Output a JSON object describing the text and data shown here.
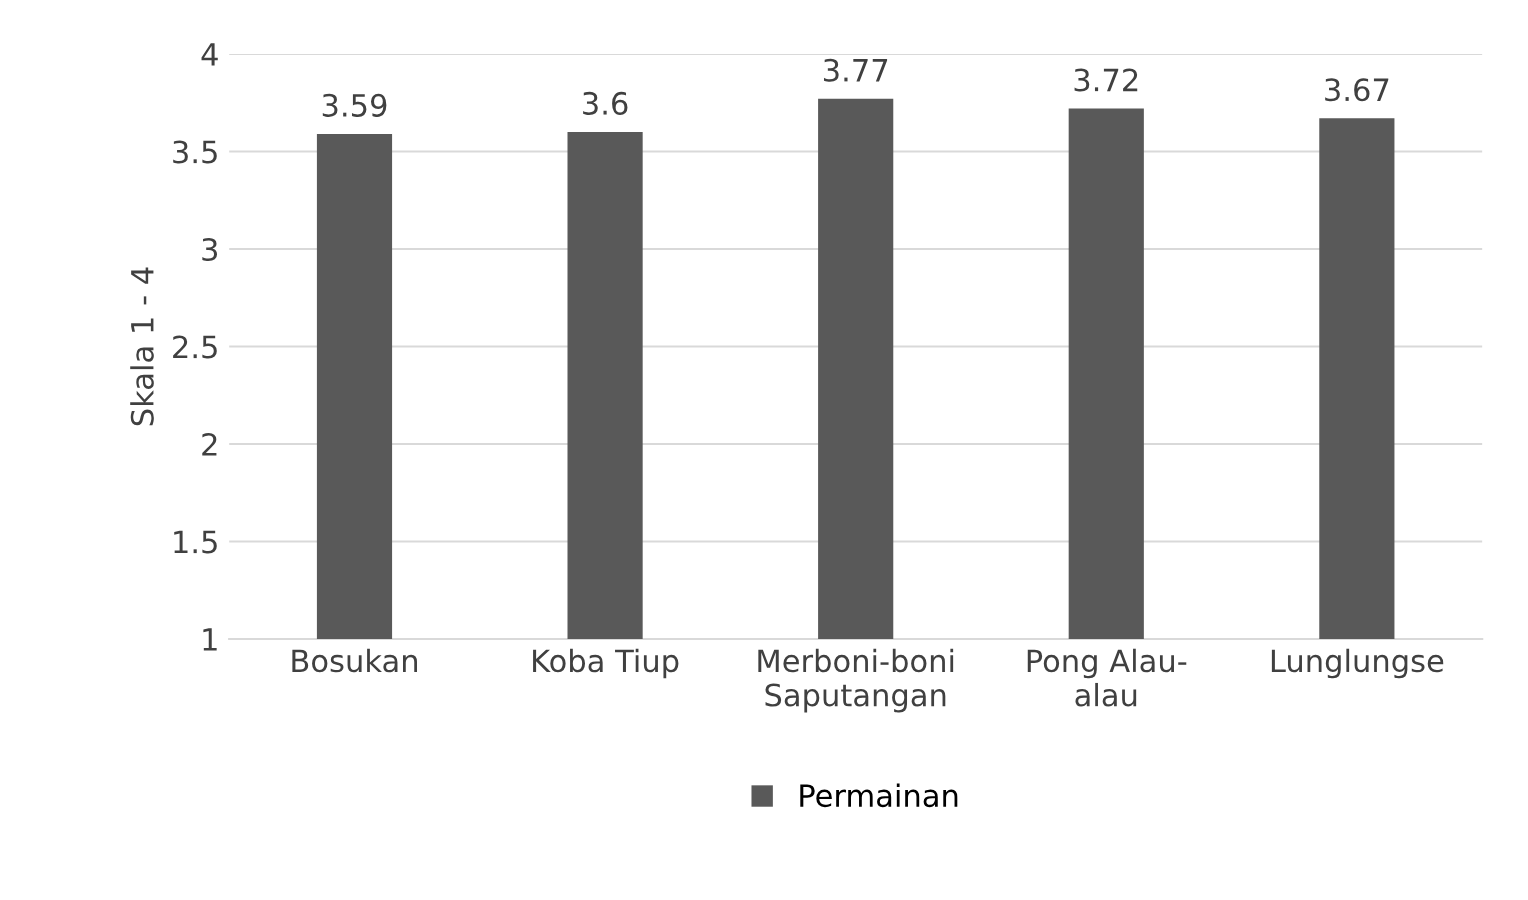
{
  "chart_data": {
    "type": "bar",
    "ylabel": "Skala 1 - 4",
    "categories": [
      "Bosukan",
      "Koba Tiup",
      "Merboni-boni\nSaputangan",
      "Pong Alau-\nalau",
      "Lunglungse"
    ],
    "series": [
      {
        "name": "Permainan",
        "color": "#595959",
        "values": [
          3.59,
          3.6,
          3.77,
          3.72,
          3.67
        ]
      }
    ],
    "ylim": [
      1,
      4
    ],
    "yticks": [
      1,
      {
        "value": 1.5,
        "label": "1.5"
      },
      2,
      {
        "value": 2.5,
        "label": "2.5"
      },
      3,
      {
        "value": 3.5,
        "label": "3.5"
      },
      4
    ],
    "grid": "y",
    "legend": "bottom",
    "data_labels": true
  }
}
